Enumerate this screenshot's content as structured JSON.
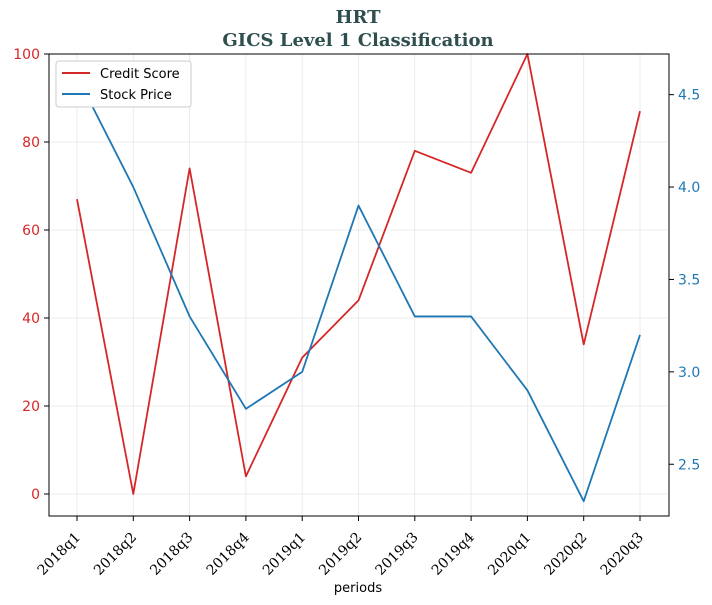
{
  "chart_data": {
    "type": "line",
    "title": "HRT",
    "subtitle": "GICS Level 1 Classification",
    "xlabel": "periods",
    "categories": [
      "2018q1",
      "2018q2",
      "2018q3",
      "2018q4",
      "2019q1",
      "2019q2",
      "2019q3",
      "2019q4",
      "2020q1",
      "2020q2",
      "2020q3"
    ],
    "y_left": {
      "ylim": [
        -5,
        100
      ],
      "ticks": [
        0,
        20,
        40,
        60,
        80,
        100
      ],
      "color": "#d62728"
    },
    "y_right": {
      "ylim": [
        2.22,
        4.72
      ],
      "ticks": [
        2.5,
        3.0,
        3.5,
        4.0,
        4.5
      ],
      "tick_labels": [
        "2.5",
        "3.0",
        "3.5",
        "4.0",
        "4.5"
      ],
      "color": "#1f77b4"
    },
    "grid": true,
    "legend": "top-left",
    "series": [
      {
        "name": "Credit Score",
        "axis": "left",
        "color": "#d62728",
        "values": [
          67,
          0,
          74,
          4,
          31,
          44,
          78,
          73,
          100,
          34,
          87
        ]
      },
      {
        "name": "Stock Price",
        "axis": "right",
        "color": "#1f77b4",
        "values": [
          4.6,
          4.0,
          3.3,
          2.8,
          3.0,
          3.9,
          3.3,
          3.3,
          2.9,
          2.3,
          3.2
        ]
      }
    ]
  }
}
